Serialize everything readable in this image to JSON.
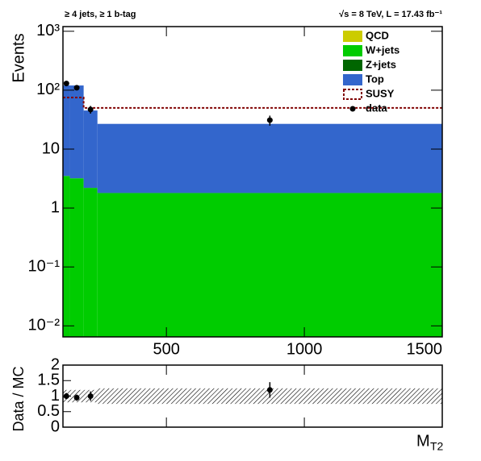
{
  "chart_data": {
    "type": "stacked-histogram",
    "title_left": "≥ 4 jets, ≥ 1 b-tag",
    "title_right": "√s = 8 TeV, L = 17.43 fb⁻¹",
    "ylabel": "Events",
    "xlabel": "M",
    "xlabel_sub": "T2",
    "log_y": true,
    "bins": [
      125,
      150,
      200,
      250,
      1500
    ],
    "xlim": [
      125,
      1500
    ],
    "xticks": [
      500,
      1000,
      1500
    ],
    "ylim": [
      0.0065,
      1200
    ],
    "yticks": [
      {
        "value": 0.01,
        "label": "10⁻²"
      },
      {
        "value": 0.1,
        "label": "10⁻¹"
      },
      1,
      10,
      {
        "value": 100,
        "label": "10²"
      },
      {
        "value": 1000,
        "label": "10³"
      }
    ],
    "series": [
      {
        "name": "QCD",
        "color": "#cccc00",
        "values": [
          0,
          0,
          0,
          0
        ]
      },
      {
        "name": "W+jets",
        "color": "#00cc00",
        "values": [
          3.5,
          3.2,
          2.2,
          1.8
        ]
      },
      {
        "name": "Z+jets",
        "color": "#006600",
        "values": [
          0,
          0,
          0,
          0
        ]
      },
      {
        "name": "Top",
        "color": "#3366cc",
        "values": [
          117,
          117,
          43,
          25
        ]
      }
    ],
    "signal": {
      "name": "SUSY",
      "color": "#800000",
      "values": [
        75,
        75,
        50,
        50
      ]
    },
    "data": {
      "name": "data",
      "color": "#000000",
      "values": [
        130,
        110,
        47,
        31
      ],
      "errors": [
        12,
        10,
        7,
        6
      ]
    },
    "ratio": {
      "ylabel": "Data / MC",
      "ylim": [
        0,
        2
      ],
      "yticks": [
        0,
        0.5,
        1,
        1.5,
        2
      ],
      "values": [
        1.0,
        0.95,
        1.0,
        1.2
      ],
      "errors": [
        0.1,
        0.1,
        0.15,
        0.25
      ],
      "band_errors": [
        0.2,
        0.2,
        0.2,
        0.25
      ]
    }
  }
}
